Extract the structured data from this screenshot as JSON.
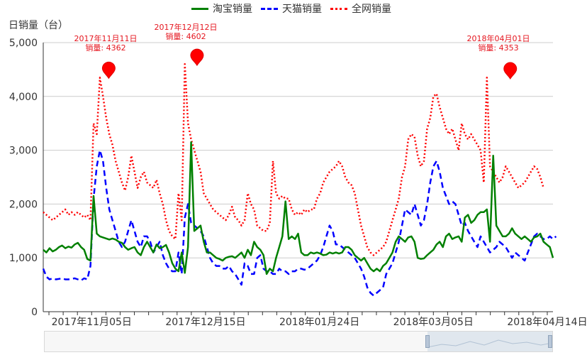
{
  "legend": [
    {
      "name": "淘宝销量",
      "color": "#008000",
      "dash": "solid"
    },
    {
      "name": "天猫销量",
      "color": "#0000ff",
      "dash": "dashed"
    },
    {
      "name": "全网销量",
      "color": "#ff0000",
      "dash": "dotted"
    }
  ],
  "y_axis_label": "日销量（台）",
  "chart_data": {
    "type": "line",
    "ylim": [
      0,
      5000
    ],
    "yticks": [
      "0",
      "1,000",
      "2,000",
      "3,000",
      "4,000",
      "5,000"
    ],
    "xticks": [
      "2017年11月05日",
      "2017年12月15日",
      "2018年01月24日",
      "2018年03月05日",
      "2018年04月14日"
    ],
    "x_start": "2017-10-19",
    "x_end": "2018-04-16",
    "annotations": [
      {
        "date": "2017-11-11",
        "value": 4362,
        "label_date": "2017年11月11日",
        "label_value": "销量: 4362"
      },
      {
        "date": "2017-12-12",
        "value": 4602,
        "label_date": "2017年12月12日",
        "label_value": "销量: 4602"
      },
      {
        "date": "2018-04-01",
        "value": 4353,
        "label_date": "2018年04月01日",
        "label_value": "销量: 4353"
      }
    ],
    "series": [
      {
        "name": "淘宝销量",
        "values": [
          1150,
          1100,
          1180,
          1120,
          1150,
          1200,
          1230,
          1180,
          1210,
          1190,
          1250,
          1280,
          1200,
          1150,
          980,
          950,
          2150,
          1450,
          1400,
          1380,
          1360,
          1340,
          1360,
          1340,
          1300,
          1280,
          1200,
          1150,
          1180,
          1200,
          1100,
          1050,
          1200,
          1300,
          1200,
          1100,
          1250,
          1180,
          1200,
          1240,
          1100,
          900,
          800,
          750,
          1100,
          720,
          1200,
          3150,
          1500,
          1550,
          1600,
          1300,
          1100,
          1100,
          1050,
          1000,
          980,
          950,
          1000,
          1020,
          1030,
          1000,
          1050,
          1100,
          1000,
          1150,
          1050,
          1300,
          1200,
          1150,
          1050,
          700,
          800,
          750,
          1000,
          1200,
          1400,
          2050,
          1350,
          1400,
          1350,
          1450,
          1100,
          1050,
          1050,
          1100,
          1080,
          1100,
          1080,
          1050,
          1060,
          1100,
          1080,
          1100,
          1080,
          1100,
          1200,
          1200,
          1150,
          1050,
          1000,
          950,
          1000,
          900,
          800,
          750,
          800,
          750,
          850,
          900,
          1000,
          1100,
          1300,
          1400,
          1350,
          1300,
          1380,
          1400,
          1300,
          1000,
          980,
          990,
          1050,
          1100,
          1150,
          1250,
          1300,
          1200,
          1400,
          1450,
          1350,
          1380,
          1400,
          1300,
          1750,
          1800,
          1650,
          1700,
          1800,
          1850,
          1850,
          1900,
          1300,
          2900,
          1600,
          1500,
          1400,
          1400,
          1450,
          1550,
          1450,
          1400,
          1350,
          1400,
          1350,
          1300,
          1380,
          1400,
          1450,
          1300,
          1250,
          1200,
          1000
        ]
      },
      {
        "name": "天猫销量",
        "values": [
          800,
          650,
          600,
          620,
          600,
          610,
          620,
          600,
          600,
          610,
          620,
          600,
          580,
          620,
          600,
          850,
          2100,
          2700,
          3000,
          2800,
          2300,
          1900,
          1700,
          1500,
          1300,
          1200,
          1300,
          1500,
          1700,
          1500,
          1300,
          1200,
          1400,
          1400,
          1300,
          1100,
          1200,
          1300,
          1050,
          900,
          800,
          750,
          750,
          1100,
          700,
          1750,
          2000,
          1650,
          1600,
          1550,
          1500,
          1400,
          1200,
          1000,
          900,
          850,
          850,
          800,
          800,
          850,
          750,
          700,
          600,
          500,
          900,
          850,
          700,
          700,
          1000,
          1050,
          800,
          750,
          750,
          700,
          700,
          800,
          750,
          750,
          700,
          750,
          750,
          800,
          800,
          780,
          800,
          850,
          900,
          950,
          1050,
          1200,
          1400,
          1600,
          1500,
          1250,
          1250,
          1200,
          1150,
          1100,
          1050,
          1000,
          900,
          800,
          650,
          450,
          350,
          300,
          350,
          400,
          450,
          700,
          800,
          900,
          1100,
          1300,
          1600,
          1900,
          1850,
          1800,
          2000,
          1800,
          1600,
          1700,
          2000,
          2400,
          2700,
          2800,
          2600,
          2300,
          2150,
          2000,
          2050,
          2000,
          1800,
          1600,
          1650,
          1500,
          1400,
          1300,
          1200,
          1400,
          1300,
          1200,
          1100,
          1150,
          1200,
          1300,
          1250,
          1200,
          1100,
          1000,
          1100,
          1050,
          1000,
          950,
          1100,
          1250,
          1400,
          1450,
          1400,
          1350,
          1350,
          1400,
          1350,
          1400
        ]
      },
      {
        "name": "全网销量",
        "values": [
          1850,
          1800,
          1750,
          1700,
          1750,
          1800,
          1850,
          1900,
          1800,
          1850,
          1800,
          1850,
          1800,
          1750,
          1800,
          1700,
          3500,
          3300,
          4350,
          4000,
          3600,
          3300,
          3100,
          2800,
          2600,
          2400,
          2250,
          2500,
          2900,
          2600,
          2300,
          2500,
          2600,
          2400,
          2350,
          2300,
          2450,
          2200,
          2000,
          1700,
          1500,
          1400,
          1350,
          2200,
          1700,
          4600,
          3500,
          3200,
          3000,
          2800,
          2600,
          2200,
          2100,
          2000,
          1900,
          1850,
          1800,
          1750,
          1700,
          1800,
          1950,
          1750,
          1700,
          1600,
          1700,
          2200,
          2000,
          1900,
          1600,
          1550,
          1500,
          1500,
          1650,
          2800,
          2200,
          2100,
          2150,
          2100,
          2100,
          1900,
          1800,
          1850,
          1800,
          1900,
          1850,
          1900,
          1900,
          2100,
          2200,
          2400,
          2500,
          2600,
          2650,
          2700,
          2800,
          2700,
          2500,
          2400,
          2350,
          2200,
          1900,
          1600,
          1400,
          1200,
          1100,
          1050,
          1100,
          1150,
          1200,
          1300,
          1500,
          1700,
          1900,
          2100,
          2500,
          2700,
          3200,
          3300,
          3250,
          2900,
          2700,
          2800,
          3400,
          3600,
          4000,
          4050,
          3800,
          3600,
          3400,
          3300,
          3400,
          3200,
          3000,
          3500,
          3300,
          3200,
          3300,
          3200,
          3100,
          3000,
          2400,
          4350,
          2700,
          2600,
          2500,
          2400,
          2500,
          2700,
          2600,
          2500,
          2400,
          2300,
          2350,
          2400,
          2500,
          2600,
          2700,
          2650,
          2500,
          2300
        ]
      }
    ]
  },
  "zoom": {
    "label": ""
  }
}
